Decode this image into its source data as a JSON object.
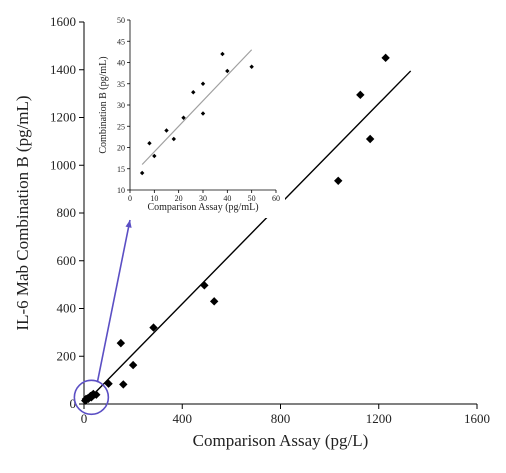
{
  "chart_data": [
    {
      "id": "main",
      "type": "scatter",
      "title": "",
      "xlabel": "Comparison Assay (pg/L)",
      "ylabel": "IL-6 Mab Combination B (pg/mL)",
      "xlim": [
        0,
        1600
      ],
      "ylim": [
        0,
        1600
      ],
      "xticks": [
        "0",
        "400",
        "800",
        "1200",
        "1600"
      ],
      "yticks": [
        "0",
        "200",
        "400",
        "600",
        "800",
        "1000",
        "1200",
        "1400",
        "1600"
      ],
      "grid": false,
      "marker": "diamond",
      "series": [
        {
          "points": [
            {
              "x": 5,
              "y": 14
            },
            {
              "x": 8,
              "y": 21
            },
            {
              "x": 10,
              "y": 18
            },
            {
              "x": 15,
              "y": 24
            },
            {
              "x": 18,
              "y": 22
            },
            {
              "x": 22,
              "y": 27
            },
            {
              "x": 26,
              "y": 33
            },
            {
              "x": 30,
              "y": 35
            },
            {
              "x": 30,
              "y": 28
            },
            {
              "x": 38,
              "y": 42
            },
            {
              "x": 40,
              "y": 38
            },
            {
              "x": 50,
              "y": 39
            },
            {
              "x": 100,
              "y": 85
            },
            {
              "x": 160,
              "y": 82
            },
            {
              "x": 150,
              "y": 255
            },
            {
              "x": 200,
              "y": 163
            },
            {
              "x": 283,
              "y": 320
            },
            {
              "x": 490,
              "y": 497
            },
            {
              "x": 530,
              "y": 430
            },
            {
              "x": 1035,
              "y": 935
            },
            {
              "x": 1125,
              "y": 1295
            },
            {
              "x": 1165,
              "y": 1110
            },
            {
              "x": 1228,
              "y": 1450
            }
          ]
        }
      ],
      "trendline": {
        "x": [
          0,
          1330
        ],
        "y": [
          0,
          1395
        ],
        "color": "#000000"
      },
      "highlight_circle": {
        "x": 30,
        "y": 28,
        "color": "#5b4fc4"
      }
    },
    {
      "id": "inset",
      "type": "scatter",
      "title": "",
      "xlabel": "Comparison Assay (pg/mL)",
      "ylabel": "Combination B (pg/mL)",
      "xlim": [
        0,
        60
      ],
      "ylim": [
        10,
        50
      ],
      "xticks": [
        "0",
        "10",
        "20",
        "30",
        "40",
        "50",
        "60"
      ],
      "yticks": [
        "10",
        "15",
        "20",
        "25",
        "30",
        "35",
        "40",
        "45",
        "50"
      ],
      "grid": false,
      "marker": "diamond",
      "series": [
        {
          "points": [
            {
              "x": 5,
              "y": 14
            },
            {
              "x": 8,
              "y": 21
            },
            {
              "x": 10,
              "y": 18
            },
            {
              "x": 15,
              "y": 24
            },
            {
              "x": 18,
              "y": 22
            },
            {
              "x": 22,
              "y": 27
            },
            {
              "x": 26,
              "y": 33
            },
            {
              "x": 30,
              "y": 35
            },
            {
              "x": 30,
              "y": 28
            },
            {
              "x": 38,
              "y": 42
            },
            {
              "x": 40,
              "y": 38
            },
            {
              "x": 50,
              "y": 39
            }
          ]
        }
      ],
      "trendline": {
        "x": [
          5,
          50
        ],
        "y": [
          16,
          43
        ],
        "color": "#a0a0a0"
      }
    }
  ],
  "colors": {
    "axis": "#000000",
    "marker": "#000000",
    "callout_arrow": "#5b4fc4"
  }
}
